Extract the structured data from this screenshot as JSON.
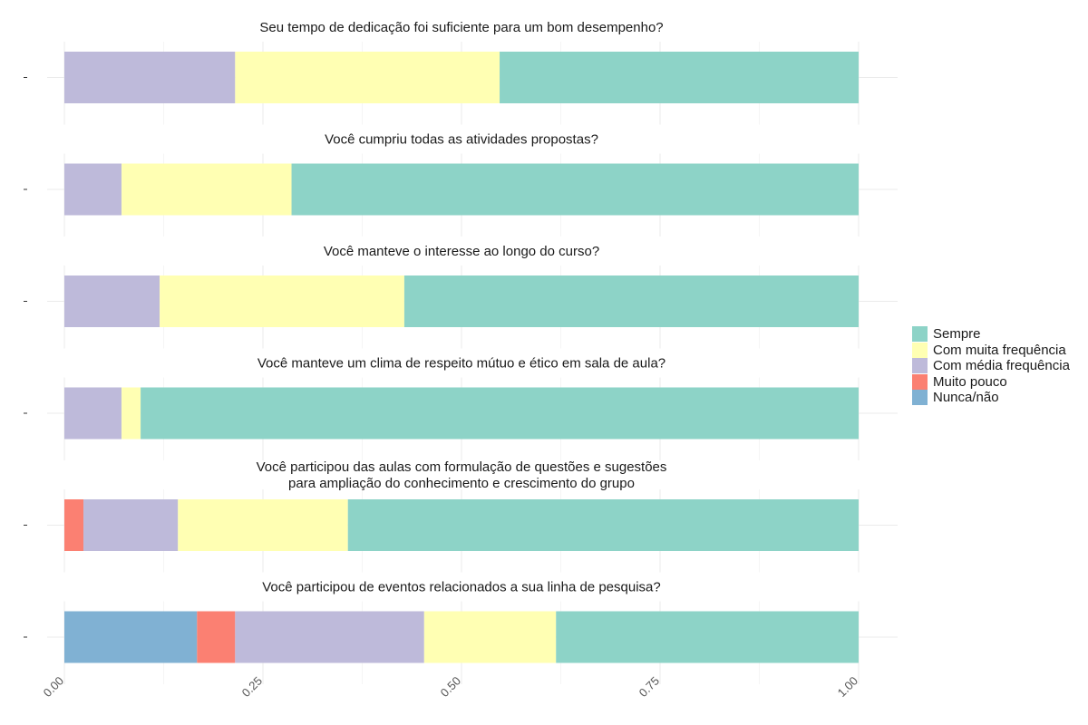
{
  "chart_data": {
    "type": "bar",
    "orientation": "horizontal",
    "stacked": true,
    "xlim": [
      0,
      1
    ],
    "x_ticks": [
      "0.00",
      "0.25",
      "0.50",
      "0.75",
      "1.00"
    ],
    "grid": true,
    "legend_position": "right",
    "series": [
      {
        "name": "Nunca/não",
        "color": "#80B1D3"
      },
      {
        "name": "Muito pouco",
        "color": "#FB8072"
      },
      {
        "name": "Com média frequência",
        "color": "#BEBADA"
      },
      {
        "name": "Com muita frequência",
        "color": "#FFFFB3"
      },
      {
        "name": "Sempre",
        "color": "#8DD3C7"
      }
    ],
    "legend": [
      "Sempre",
      "Com muita frequência",
      "Com média frequência",
      "Muito pouco",
      "Nunca/não"
    ],
    "panels": [
      {
        "title": [
          "Seu tempo de dedicação foi suficiente para um bom desempenho?"
        ],
        "values": {
          "Nunca/não": 0,
          "Muito pouco": 0,
          "Com média frequência": 0.215,
          "Com muita frequência": 0.333,
          "Sempre": 0.452
        }
      },
      {
        "title": [
          "Você cumpriu todas as atividades propostas?"
        ],
        "values": {
          "Nunca/não": 0,
          "Muito pouco": 0,
          "Com média frequência": 0.072,
          "Com muita frequência": 0.214,
          "Sempre": 0.714
        }
      },
      {
        "title": [
          "Você manteve o interesse ao longo do curso?"
        ],
        "values": {
          "Nunca/não": 0,
          "Muito pouco": 0,
          "Com média frequência": 0.12,
          "Com muita frequência": 0.308,
          "Sempre": 0.572
        }
      },
      {
        "title": [
          "Você manteve um clima de respeito mútuo e ético em sala de aula?"
        ],
        "values": {
          "Nunca/não": 0,
          "Muito pouco": 0,
          "Com média frequência": 0.072,
          "Com muita frequência": 0.024,
          "Sempre": 0.904
        }
      },
      {
        "title": [
          "Você participou das aulas com formulação de questões e sugestões",
          "para ampliação do conhecimento e crescimento do grupo"
        ],
        "values": {
          "Nunca/não": 0,
          "Muito pouco": 0.024,
          "Com média frequência": 0.119,
          "Com muita frequência": 0.214,
          "Sempre": 0.643
        }
      },
      {
        "title": [
          "Você participou de eventos relacionados a sua linha de pesquisa?"
        ],
        "values": {
          "Nunca/não": 0.167,
          "Muito pouco": 0.048,
          "Com média frequência": 0.238,
          "Com muita frequência": 0.166,
          "Sempre": 0.381
        }
      }
    ]
  }
}
